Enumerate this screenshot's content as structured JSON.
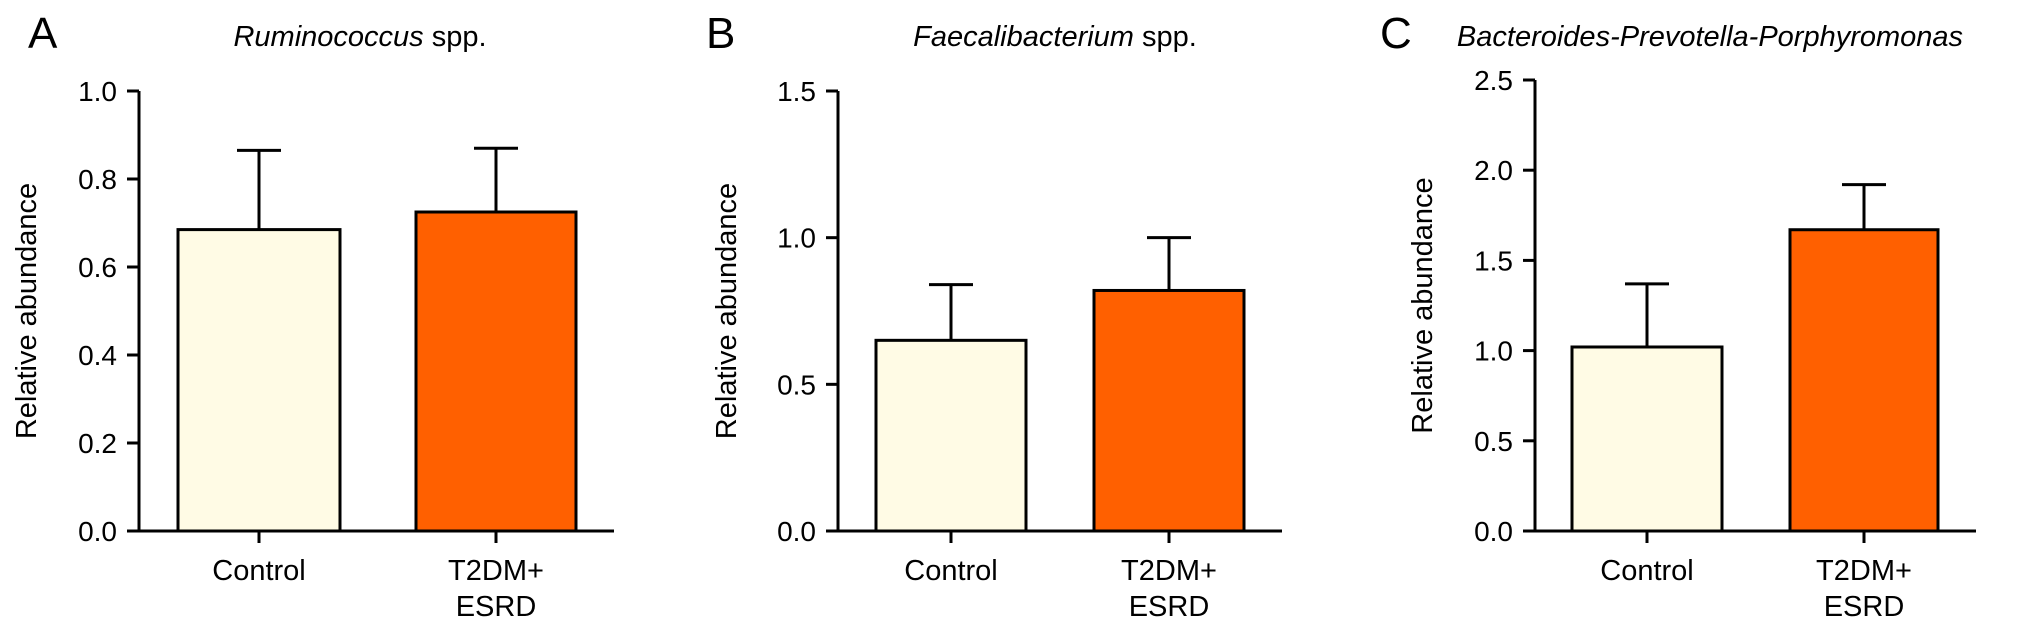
{
  "chart_data": [
    {
      "type": "bar",
      "panel_label": "A",
      "title_italic": "Ruminococcus",
      "title_rest": " spp.",
      "ylabel": "Relative abundance",
      "categories": [
        "Control",
        "T2DM+|ESRD"
      ],
      "values": [
        0.685,
        0.725
      ],
      "errors": [
        0.18,
        0.145
      ],
      "ylim": [
        0,
        1.0
      ],
      "yticks": [
        "0.0",
        "0.2",
        "0.4",
        "0.6",
        "0.8",
        "1.0"
      ],
      "bar_colors": [
        "#FFFBE5",
        "#FF6000"
      ]
    },
    {
      "type": "bar",
      "panel_label": "B",
      "title_italic": "Faecalibacterium",
      "title_rest": " spp.",
      "ylabel": "Relative abundance",
      "categories": [
        "Control",
        "T2DM+|ESRD"
      ],
      "values": [
        0.65,
        0.82
      ],
      "errors": [
        0.19,
        0.18
      ],
      "ylim": [
        0,
        1.5
      ],
      "yticks": [
        "0.0",
        "0.5",
        "1.0",
        "1.5"
      ],
      "bar_colors": [
        "#FFFBE5",
        "#FF6000"
      ]
    },
    {
      "type": "bar",
      "panel_label": "C",
      "title_italic": "Bacteroides-Prevotella-Porphyromonas",
      "title_rest": "",
      "ylabel": "Relative abundance",
      "categories": [
        "Control",
        "T2DM+|ESRD"
      ],
      "values": [
        1.02,
        1.67
      ],
      "errors": [
        0.35,
        0.25
      ],
      "ylim": [
        0,
        2.5
      ],
      "yticks": [
        "0.0",
        "0.5",
        "1.0",
        "1.5",
        "2.0",
        "2.5"
      ],
      "bar_colors": [
        "#FFFBE5",
        "#FF6000"
      ]
    }
  ]
}
